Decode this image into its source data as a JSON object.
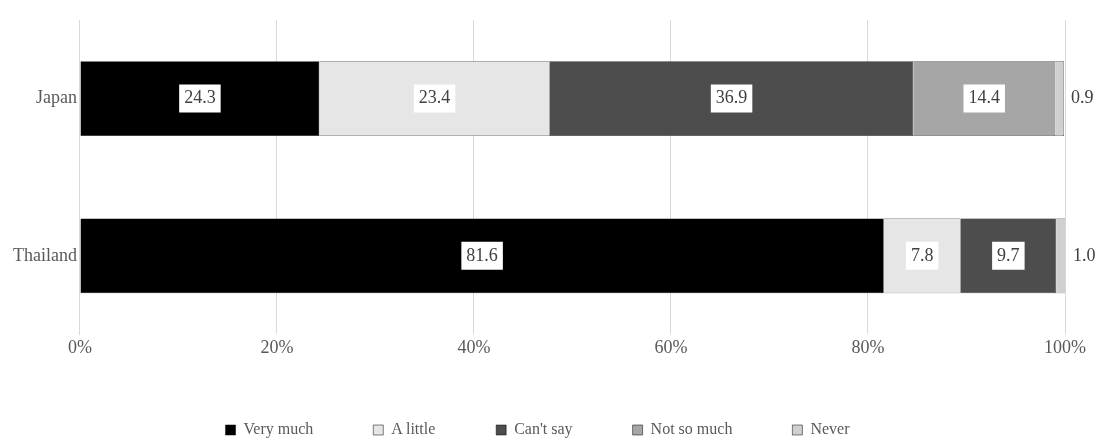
{
  "chart_data": {
    "type": "bar",
    "orientation": "horizontal",
    "stacked": true,
    "categories": [
      "Japan",
      "Thailand"
    ],
    "series": [
      {
        "name": "Very much",
        "color": "#000000",
        "values": [
          24.3,
          81.6
        ],
        "value_labels": [
          "24.3",
          "81.6"
        ]
      },
      {
        "name": "A little",
        "color": "#e6e6e6",
        "values": [
          23.4,
          7.8
        ],
        "value_labels": [
          "23.4",
          "7.8"
        ]
      },
      {
        "name": "Can't say",
        "color": "#4d4d4d",
        "values": [
          36.9,
          9.7
        ],
        "value_labels": [
          "36.9",
          "9.7"
        ]
      },
      {
        "name": "Not so much",
        "color": "#a6a6a6",
        "values": [
          14.4,
          null
        ],
        "value_labels": [
          "14.4",
          null
        ]
      },
      {
        "name": "Never",
        "color": "#d0d0d0",
        "values": [
          0.9,
          1.0
        ],
        "value_labels": [
          "0.9",
          "1.0"
        ]
      }
    ],
    "xlim": [
      0,
      100
    ],
    "xticks": [
      {
        "value": 0,
        "label": "0%"
      },
      {
        "value": 20,
        "label": "20%"
      },
      {
        "value": 40,
        "label": "40%"
      },
      {
        "value": 60,
        "label": "60%"
      },
      {
        "value": 80,
        "label": "80%"
      },
      {
        "value": 100,
        "label": "100%"
      }
    ],
    "grid": "x",
    "legend": "bottom"
  }
}
